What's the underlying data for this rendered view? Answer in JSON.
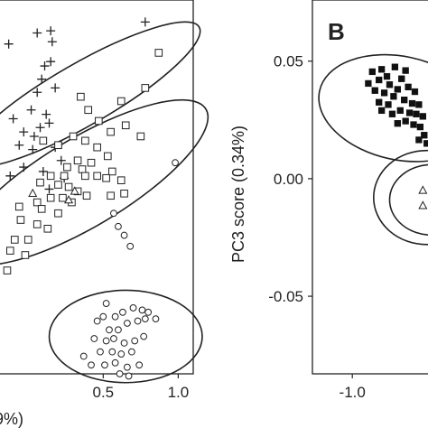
{
  "chart_data": [
    {
      "type": "scatter",
      "panel_label": "",
      "x_tick_labels": [
        "0.5",
        "1.0"
      ],
      "x_ticks": [
        0.5,
        1.0
      ],
      "xlabel_visible": "9%)",
      "ylabel": "",
      "y_tick_labels": [],
      "xlim": [
        -0.2,
        1.1
      ],
      "ylim": [
        -0.7,
        1.0
      ],
      "grid": false,
      "series": [
        {
          "marker": "plus",
          "points": [
            [
              -0.13,
              0.8
            ],
            [
              0.06,
              0.85
            ],
            [
              0.15,
              0.86
            ],
            [
              0.16,
              0.81
            ],
            [
              0.78,
              0.9
            ],
            [
              0.11,
              0.7
            ],
            [
              0.15,
              0.72
            ],
            [
              0.09,
              0.64
            ],
            [
              0.06,
              0.58
            ],
            [
              0.18,
              0.6
            ],
            [
              0.12,
              0.48
            ],
            [
              0.02,
              0.5
            ],
            [
              0.08,
              0.42
            ],
            [
              0.14,
              0.44
            ],
            [
              0.04,
              0.38
            ],
            [
              -0.03,
              0.4
            ],
            [
              -0.1,
              0.46
            ],
            [
              0.18,
              0.33
            ],
            [
              0.03,
              0.32
            ],
            [
              -0.06,
              0.34
            ],
            [
              0.22,
              0.27
            ],
            [
              0.1,
              0.22
            ],
            [
              -0.03,
              0.24
            ],
            [
              0.24,
              0.19
            ],
            [
              0.14,
              0.14
            ],
            [
              -0.12,
              0.2
            ]
          ]
        },
        {
          "marker": "square",
          "points": [
            [
              0.87,
              0.76
            ],
            [
              0.78,
              0.6
            ],
            [
              0.62,
              0.54
            ],
            [
              0.35,
              0.56
            ],
            [
              0.4,
              0.5
            ],
            [
              0.47,
              0.45
            ],
            [
              0.65,
              0.43
            ],
            [
              0.55,
              0.4
            ],
            [
              0.75,
              0.38
            ],
            [
              0.3,
              0.38
            ],
            [
              0.38,
              0.36
            ],
            [
              0.1,
              0.36
            ],
            [
              0.2,
              0.34
            ],
            [
              0.46,
              0.33
            ],
            [
              0.53,
              0.29
            ],
            [
              0.33,
              0.27
            ],
            [
              0.42,
              0.26
            ],
            [
              0.26,
              0.24
            ],
            [
              0.36,
              0.23
            ],
            [
              0.56,
              0.22
            ],
            [
              0.15,
              0.2
            ],
            [
              0.24,
              0.2
            ],
            [
              0.38,
              0.2
            ],
            [
              0.46,
              0.2
            ],
            [
              0.52,
              0.19
            ],
            [
              0.62,
              0.18
            ],
            [
              0.08,
              0.17
            ],
            [
              0.2,
              0.16
            ],
            [
              0.27,
              0.15
            ],
            [
              0.33,
              0.13
            ],
            [
              0.39,
              0.11
            ],
            [
              0.55,
              0.11
            ],
            [
              0.64,
              0.12
            ],
            [
              0.15,
              0.1
            ],
            [
              0.23,
              0.1
            ],
            [
              0.29,
              0.08
            ],
            [
              0.06,
              0.08
            ],
            [
              -0.06,
              0.06
            ],
            [
              0.09,
              0.05
            ],
            [
              0.2,
              0.03
            ],
            [
              -0.05,
              0.0
            ],
            [
              0.06,
              -0.02
            ],
            [
              0.13,
              -0.04
            ],
            [
              -0.09,
              -0.09
            ],
            [
              0.0,
              -0.09
            ],
            [
              -0.12,
              -0.14
            ],
            [
              -0.02,
              -0.16
            ],
            [
              -0.14,
              -0.23
            ]
          ]
        },
        {
          "marker": "triangle",
          "points": [
            [
              0.03,
              0.12
            ],
            [
              0.27,
              0.09
            ],
            [
              0.31,
              0.13
            ]
          ]
        },
        {
          "marker": "circle",
          "points": [
            [
              0.98,
              0.26
            ],
            [
              0.57,
              0.03
            ],
            [
              0.6,
              -0.03
            ],
            [
              0.64,
              -0.07
            ],
            [
              0.68,
              -0.12
            ],
            [
              0.52,
              -0.38
            ],
            [
              0.5,
              -0.44
            ],
            [
              0.58,
              -0.44
            ],
            [
              0.63,
              -0.42
            ],
            [
              0.7,
              -0.4
            ],
            [
              0.76,
              -0.41
            ],
            [
              0.8,
              -0.42
            ],
            [
              0.46,
              -0.46
            ],
            [
              0.54,
              -0.5
            ],
            [
              0.6,
              -0.5
            ],
            [
              0.66,
              -0.47
            ],
            [
              0.73,
              -0.46
            ],
            [
              0.78,
              -0.45
            ],
            [
              0.85,
              -0.45
            ],
            [
              0.44,
              -0.54
            ],
            [
              0.52,
              -0.55
            ],
            [
              0.57,
              -0.54
            ],
            [
              0.64,
              -0.56
            ],
            [
              0.71,
              -0.55
            ],
            [
              0.77,
              -0.53
            ],
            [
              0.48,
              -0.6
            ],
            [
              0.56,
              -0.6
            ],
            [
              0.62,
              -0.61
            ],
            [
              0.69,
              -0.6
            ],
            [
              0.37,
              -0.62
            ],
            [
              0.42,
              -0.66
            ],
            [
              0.51,
              -0.66
            ],
            [
              0.58,
              -0.65
            ],
            [
              0.66,
              -0.67
            ],
            [
              0.74,
              -0.66
            ],
            [
              0.61,
              -0.7
            ],
            [
              0.67,
              -0.71
            ]
          ]
        }
      ],
      "ellipses": [
        {
          "cx": 0.36,
          "cy": 0.57,
          "rx": 0.9,
          "ry": 0.14,
          "angle_deg": 30
        },
        {
          "cx": 0.37,
          "cy": 0.17,
          "rx": 0.95,
          "ry": 0.2,
          "angle_deg": 31
        },
        {
          "cx": 0.65,
          "cy": -0.53,
          "rx": 0.51,
          "ry": 0.21,
          "angle_deg": 0
        }
      ]
    },
    {
      "type": "scatter",
      "panel_label": "B",
      "ylabel": "PC3 score (0.34%)",
      "y_tick_labels": [
        "0.05",
        "0.00",
        "-0.05"
      ],
      "y_ticks": [
        0.05,
        0.0,
        -0.05
      ],
      "x_tick_labels": [
        "-1.0"
      ],
      "x_ticks": [
        -1.0
      ],
      "xlim": [
        -1.3,
        -0.35
      ],
      "ylim": [
        -0.083,
        0.076
      ],
      "grid": false,
      "series": [
        {
          "marker": "filled-square",
          "points": [
            [
              -0.85,
              0.0455
            ],
            [
              -0.78,
              0.0465
            ],
            [
              -0.68,
              0.0475
            ],
            [
              -0.6,
              0.046
            ],
            [
              -0.63,
              0.0425
            ],
            [
              -0.74,
              0.0435
            ],
            [
              -0.88,
              0.0405
            ],
            [
              -0.8,
              0.042
            ],
            [
              -0.72,
              0.04
            ],
            [
              -0.66,
              0.038
            ],
            [
              -0.58,
              0.039
            ],
            [
              -0.53,
              0.037
            ],
            [
              -0.76,
              0.0365
            ],
            [
              -0.83,
              0.0375
            ],
            [
              -0.69,
              0.035
            ],
            [
              -0.61,
              0.0335
            ],
            [
              -0.55,
              0.032
            ],
            [
              -0.5,
              0.0315
            ],
            [
              -0.73,
              0.0315
            ],
            [
              -0.8,
              0.0325
            ],
            [
              -0.64,
              0.029
            ],
            [
              -0.57,
              0.028
            ],
            [
              -0.52,
              0.0275
            ],
            [
              -0.47,
              0.0265
            ],
            [
              -0.7,
              0.0275
            ],
            [
              -0.78,
              0.029
            ],
            [
              -0.6,
              0.0245
            ],
            [
              -0.54,
              0.023
            ],
            [
              -0.49,
              0.022
            ],
            [
              -0.46,
              0.0185
            ],
            [
              -0.66,
              0.0235
            ],
            [
              -0.5,
              0.0165
            ],
            [
              -0.44,
              0.015
            ]
          ]
        },
        {
          "marker": "triangle",
          "points": [
            [
              -0.47,
              -0.005
            ],
            [
              -0.47,
              -0.0115
            ]
          ]
        }
      ],
      "ellipses": [
        {
          "cx": -0.64,
          "cy": 0.03,
          "rx": 0.62,
          "ry": 0.022,
          "angle_deg": -12
        },
        {
          "cx": -0.44,
          "cy": -0.008,
          "rx": 0.4,
          "ry": 0.02,
          "angle_deg": 0
        },
        {
          "cx": -0.4,
          "cy": -0.009,
          "rx": 0.32,
          "ry": 0.015,
          "angle_deg": 0
        }
      ]
    }
  ]
}
